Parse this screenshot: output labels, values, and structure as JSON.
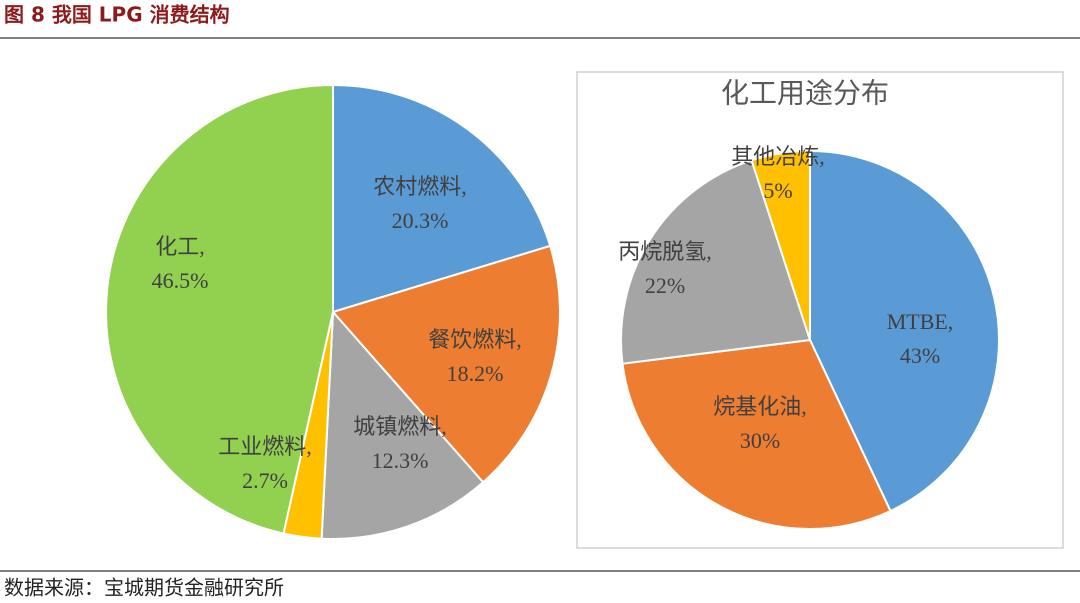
{
  "header": {
    "title": "图 8 我国 LPG 消费结构"
  },
  "chart_data": [
    {
      "type": "pie",
      "categories": [
        "农村燃料,",
        "餐饮燃料,",
        "城镇燃料,",
        "工业燃料,",
        "化工,"
      ],
      "values": [
        20.3,
        18.2,
        12.3,
        2.7,
        46.5
      ],
      "value_labels": [
        "20.3%",
        "18.2%",
        "12.3%",
        "2.7%",
        "46.5%"
      ],
      "colors": [
        "#5b9bd5",
        "#ed7d31",
        "#a5a5a5",
        "#ffc000",
        "#92d050"
      ]
    },
    {
      "type": "pie",
      "title": "化工用途分布",
      "categories": [
        "MTBE,",
        "烷基化油,",
        "丙烷脱氢,",
        "其他冶炼,"
      ],
      "values": [
        43,
        30,
        22,
        5
      ],
      "value_labels": [
        "43%",
        "30%",
        "22%",
        "5%"
      ],
      "colors": [
        "#5b9bd5",
        "#ed7d31",
        "#a5a5a5",
        "#ffc000"
      ]
    }
  ],
  "footer": {
    "source": "数据来源：宝城期货金融研究所"
  }
}
